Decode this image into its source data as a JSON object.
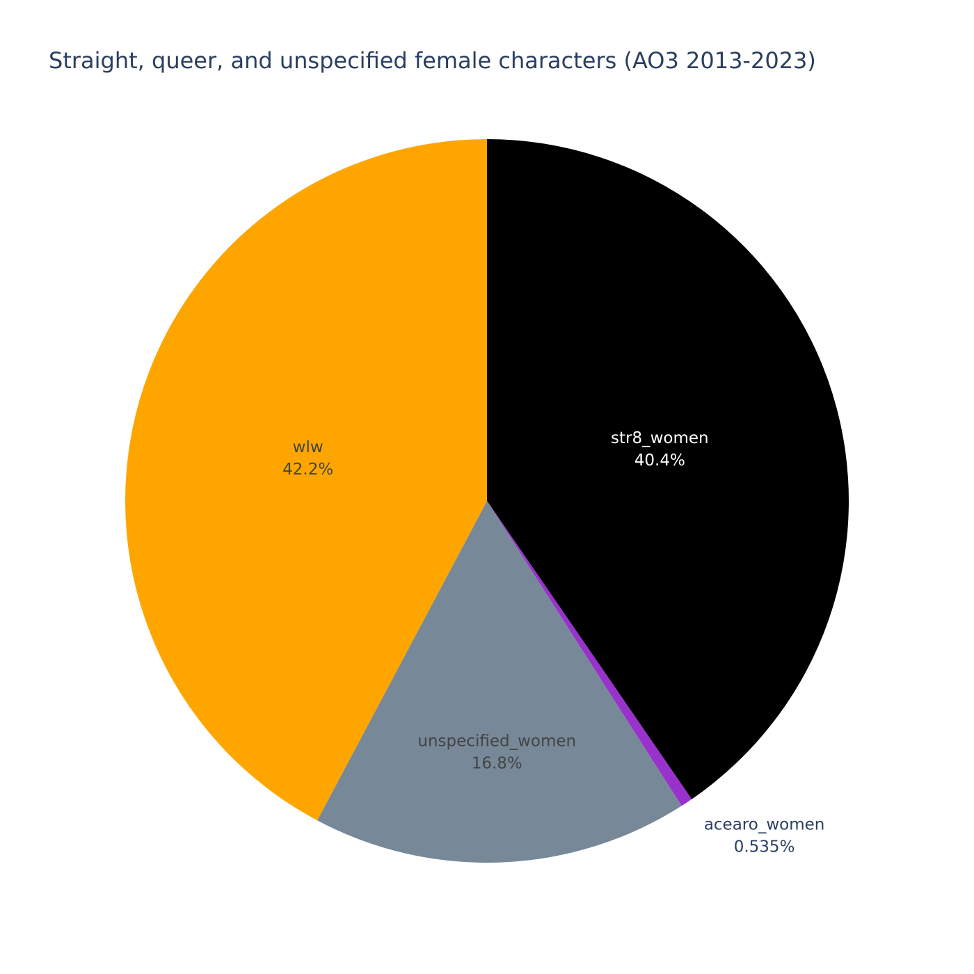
{
  "chart_data": {
    "type": "pie",
    "title": "Straight, queer, and unspecified female characters (AO3 2013-2023)",
    "direction": "clockwise",
    "start_angle_deg": 90,
    "slices": [
      {
        "name": "str8_women",
        "percent": 40.4,
        "label": "40.4%",
        "color": "#000000",
        "text_color": "#ffffff",
        "label_position": "inside"
      },
      {
        "name": "acearo_women",
        "percent": 0.535,
        "label": "0.535%",
        "color": "#9932cc",
        "text_color": "#2a3f5f",
        "label_position": "outside"
      },
      {
        "name": "unspecified_women",
        "percent": 16.8,
        "label": "16.8%",
        "color": "#778899",
        "text_color": "#444444",
        "label_position": "inside"
      },
      {
        "name": "wlw",
        "percent": 42.2,
        "label": "42.2%",
        "color": "#ffa500",
        "text_color": "#444444",
        "label_position": "inside"
      }
    ]
  }
}
